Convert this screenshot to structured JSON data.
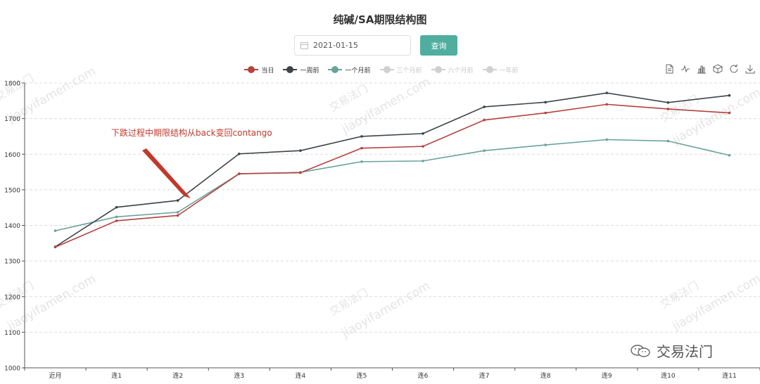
{
  "title": "纯碱/SA期限结构图",
  "date_picker": {
    "value": "2021-01-15",
    "icon": "calendar-icon"
  },
  "query_button": {
    "label": "查询"
  },
  "legend": [
    {
      "name": "当日",
      "color": "#b5423f",
      "active": true
    },
    {
      "name": "一周前",
      "color": "#3d4448",
      "active": true
    },
    {
      "name": "一个月前",
      "color": "#6aa39a",
      "active": true
    },
    {
      "name": "三个月前",
      "color": "#c8c8c8",
      "active": false
    },
    {
      "name": "六个月前",
      "color": "#c8c8c8",
      "active": false
    },
    {
      "name": "一年前",
      "color": "#c8c8c8",
      "active": false
    }
  ],
  "toolbox": [
    "data-view-icon",
    "line-chart-icon",
    "bar-chart-icon",
    "stack-icon",
    "restore-icon",
    "download-icon"
  ],
  "watermark": {
    "text": "jiaoyifamen.com",
    "brand": "交易法门",
    "logo_text": "交易法门"
  },
  "chart_data": {
    "type": "line",
    "categories": [
      "近月",
      "连1",
      "连2",
      "连3",
      "连4",
      "连5",
      "连6",
      "连7",
      "连8",
      "连9",
      "连10",
      "连11"
    ],
    "series": [
      {
        "name": "当日",
        "color": "#b5423f",
        "values": [
          1339,
          1413,
          1428,
          1545,
          1548,
          1617,
          1622,
          1696,
          1716,
          1740,
          1727,
          1716
        ]
      },
      {
        "name": "一周前",
        "color": "#3d4448",
        "values": [
          1340,
          1451,
          1470,
          1601,
          1610,
          1650,
          1658,
          1733,
          1746,
          1772,
          1745,
          1765
        ]
      },
      {
        "name": "一个月前",
        "color": "#6aa39a",
        "values": [
          1385,
          1424,
          1437,
          1545,
          1549,
          1579,
          1581,
          1610,
          1626,
          1641,
          1637,
          1597
        ]
      }
    ],
    "ylim": [
      1000,
      1800
    ],
    "yticks": [
      1000,
      1100,
      1200,
      1300,
      1400,
      1500,
      1600,
      1700,
      1800
    ],
    "grid": "horizontal-dashed",
    "annotation": {
      "text": "下跌过程中期限结构从back变回contango",
      "color": "#c0392b",
      "points_to": "连2"
    }
  }
}
